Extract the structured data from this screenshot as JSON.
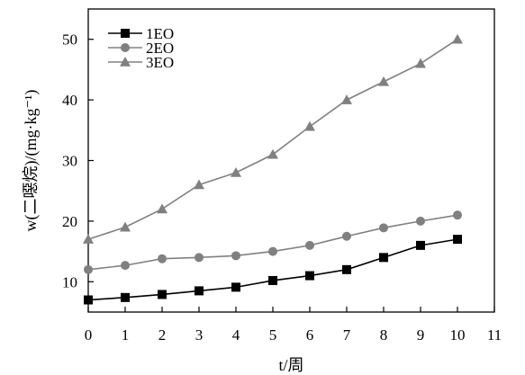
{
  "chart_data": {
    "type": "line",
    "title": "",
    "xlabel": "t/周",
    "ylabel": "w(二噁烷)/(mg·kg⁻¹)",
    "x": [
      0,
      1,
      2,
      3,
      4,
      5,
      6,
      7,
      8,
      9,
      10
    ],
    "xlim": [
      0,
      11
    ],
    "ylim": [
      5,
      55
    ],
    "xticks": [
      0,
      1,
      2,
      3,
      4,
      5,
      6,
      7,
      8,
      9,
      10,
      11
    ],
    "yticks": [
      10,
      20,
      30,
      40,
      50
    ],
    "grid": false,
    "legend": "top-left",
    "series": [
      {
        "name": "1EO",
        "marker": "square",
        "color": "#000000",
        "values": [
          7.0,
          7.4,
          7.9,
          8.5,
          9.1,
          10.2,
          11.0,
          12.0,
          14.0,
          16.0,
          17.0
        ]
      },
      {
        "name": "2EO",
        "marker": "circle",
        "color": "#808080",
        "values": [
          12.0,
          12.7,
          13.8,
          14.0,
          14.3,
          15.0,
          16.0,
          17.5,
          18.9,
          20.0,
          21.0
        ]
      },
      {
        "name": "3EO",
        "marker": "triangle",
        "color": "#808080",
        "values": [
          17.0,
          19.0,
          22.0,
          26.0,
          28.0,
          31.0,
          35.6,
          40.0,
          43.0,
          46.0,
          50.0
        ]
      }
    ]
  }
}
